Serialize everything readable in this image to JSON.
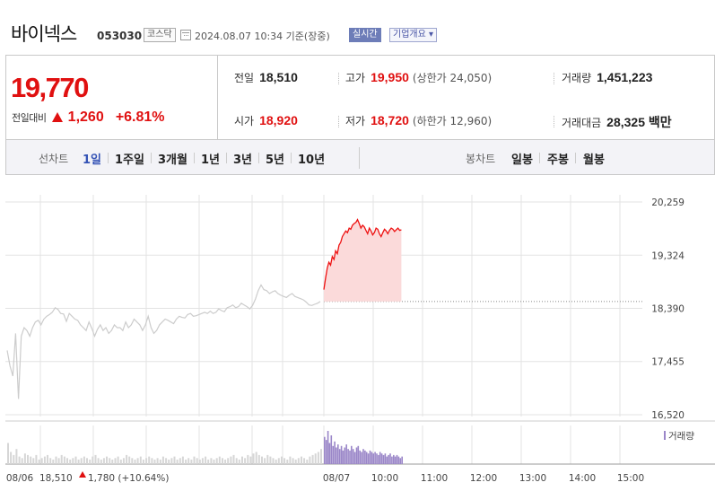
{
  "stock": {
    "name": "바이넥스",
    "code": "053030",
    "market": "코스닥",
    "timestamp": "2024.08.07 10:34 기준(장중)",
    "realtime_label": "실시간",
    "company_button": "기업개요 ▾"
  },
  "price": {
    "current": "19,770",
    "change_label": "전일대비",
    "change_amount": "1,260",
    "change_percent": "+6.81%",
    "direction": "up",
    "color": "#e01010"
  },
  "summary": {
    "prev_close": {
      "label": "전일",
      "value": "18,510"
    },
    "high": {
      "label": "고가",
      "value": "19,950",
      "limit_label": "(상한가 24,050)"
    },
    "volume": {
      "label": "거래량",
      "value": "1,451,223"
    },
    "open": {
      "label": "시가",
      "value": "18,920"
    },
    "low": {
      "label": "저가",
      "value": "18,720",
      "limit_label": "(하한가 12,960)"
    },
    "trade_value": {
      "label": "거래대금",
      "value": "28,325 백만"
    }
  },
  "period_bar": {
    "line_title": "선차트",
    "line_periods": [
      "1일",
      "1주일",
      "3개월",
      "1년",
      "3년",
      "5년",
      "10년"
    ],
    "active_period": "1일",
    "candle_title": "봉차트",
    "candle_periods": [
      "일봉",
      "주봉",
      "월봉"
    ]
  },
  "chart_data": {
    "type": "line",
    "y_ticks": [
      "20,259",
      "19,324",
      "18,390",
      "17,455",
      "16,520"
    ],
    "y_tick_values": [
      20259,
      19324,
      18390,
      17455,
      16520
    ],
    "ylim": [
      16520,
      20259
    ],
    "x_ticks": [
      "08/06",
      "08/07",
      "10:00",
      "11:00",
      "12:00",
      "13:00",
      "14:00",
      "15:00"
    ],
    "prev_close": 18510,
    "volume_label": "거래량",
    "footer_prev": {
      "date": "08/06",
      "price": "18,510",
      "change": "1,780",
      "percent": "(+10.64%)"
    },
    "colors": {
      "prev_day_line": "#cccccc",
      "today_line": "#ee1111",
      "today_fill": "#fbdada",
      "prev_volume": "#d6d6d6",
      "today_volume": "#9a86c8",
      "baseline": "#888888",
      "grid": "#e3e3e3"
    },
    "series": [
      {
        "day": "08/06",
        "values": [
          17650,
          17380,
          17200,
          17950,
          16800,
          17900,
          18050,
          18000,
          17900,
          18050,
          18150,
          18180,
          18100,
          18200,
          18250,
          18280,
          18320,
          18400,
          18370,
          18300,
          18290,
          18160,
          18300,
          18250,
          18200,
          18180,
          18100,
          18050,
          18000,
          18150,
          18040,
          17900,
          18020,
          18100,
          18000,
          18050,
          17950,
          18000,
          18100,
          18050,
          18050,
          18000,
          18150,
          18050,
          18100,
          18200,
          18150,
          18100,
          18000,
          18100,
          18250,
          18050,
          17950,
          18000,
          18100,
          18150,
          18200,
          18180,
          18150,
          18120,
          18200,
          18250,
          18230,
          18220,
          18280,
          18300,
          18250,
          18260,
          18280,
          18300,
          18320,
          18300,
          18340,
          18300,
          18320,
          18380,
          18350,
          18330,
          18400,
          18420,
          18450,
          18400,
          18420,
          18480,
          18450,
          18420,
          18380,
          18440,
          18550,
          18700,
          18800,
          18720,
          18700,
          18650,
          18680,
          18700,
          18650,
          18620,
          18600,
          18580,
          18620,
          18650,
          18600,
          18580,
          18560,
          18540,
          18500,
          18450,
          18440,
          18460,
          18480,
          18510
        ]
      },
      {
        "day": "08/07",
        "values": [
          18720,
          18920,
          19100,
          19200,
          19150,
          19300,
          19250,
          19400,
          19350,
          19500,
          19550,
          19650,
          19700,
          19750,
          19720,
          19800,
          19780,
          19850,
          19880,
          19900,
          19950,
          19880,
          19800,
          19850,
          19820,
          19760,
          19700,
          19800,
          19750,
          19680,
          19720,
          19800,
          19780,
          19700,
          19650,
          19720,
          19780,
          19750,
          19700,
          19760,
          19800,
          19780,
          19740,
          19770,
          19800,
          19760,
          19770
        ]
      }
    ],
    "volume_series": [
      {
        "day": "08/06",
        "values": [
          14,
          8,
          6,
          10,
          5,
          4,
          7,
          6,
          5,
          4,
          6,
          3,
          4,
          5,
          6,
          4,
          3,
          5,
          4,
          6,
          5,
          4,
          3,
          4,
          5,
          3,
          4,
          5,
          4,
          3,
          5,
          6,
          4,
          3,
          4,
          5,
          4,
          3,
          4,
          5,
          3,
          4,
          6,
          5,
          4,
          3,
          4,
          5,
          3,
          4,
          5,
          4,
          3,
          4,
          3,
          5,
          4,
          3,
          4,
          5,
          3,
          4,
          5,
          3,
          4,
          3,
          5,
          4,
          3,
          4,
          5,
          3,
          4,
          3,
          4,
          5,
          4,
          3,
          4,
          5,
          6,
          4,
          3,
          5,
          4,
          6,
          5,
          7,
          8,
          6,
          5,
          4,
          6,
          5,
          4,
          3,
          4,
          5,
          4,
          3,
          5,
          4,
          3,
          4,
          5,
          4,
          3,
          5,
          6,
          7,
          8,
          10
        ]
      },
      {
        "day": "08/07",
        "values": [
          18,
          16,
          22,
          14,
          19,
          12,
          15,
          11,
          13,
          10,
          12,
          9,
          11,
          13,
          10,
          9,
          12,
          10,
          8,
          11,
          12,
          9,
          8,
          10,
          9,
          8,
          7,
          9,
          8,
          7,
          8,
          7,
          6,
          8,
          7,
          6,
          7,
          5,
          6,
          7,
          5,
          6,
          5,
          6,
          5,
          4,
          5
        ]
      }
    ]
  }
}
